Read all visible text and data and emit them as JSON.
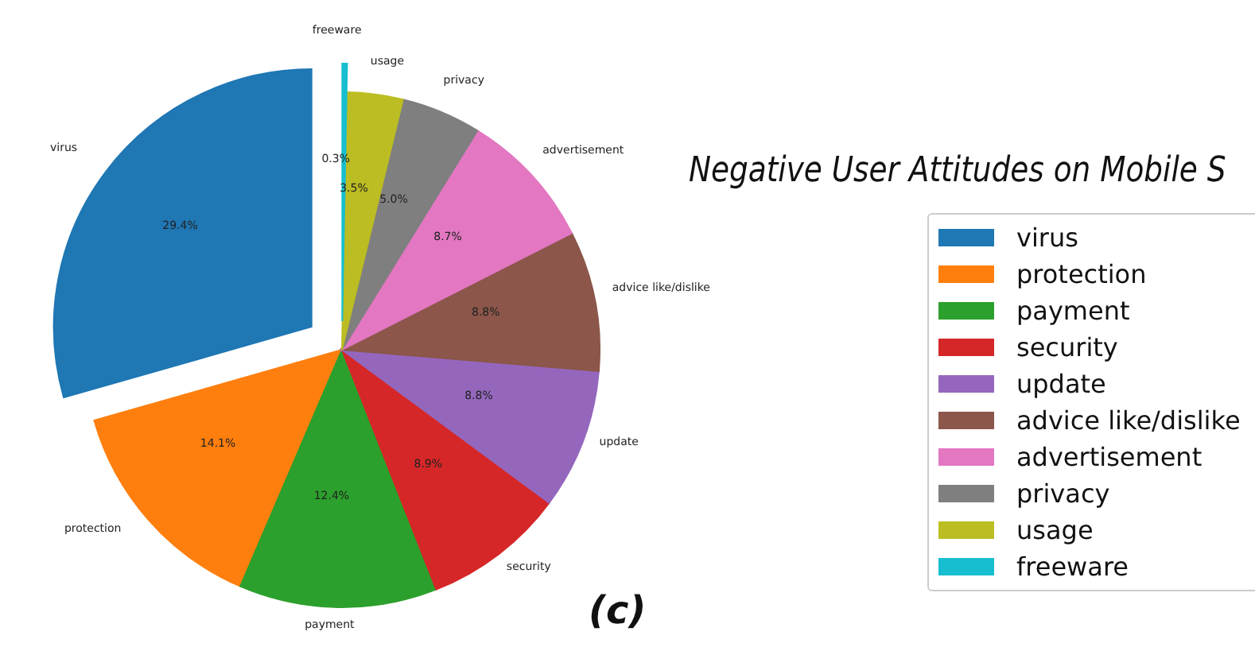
{
  "chart_data": {
    "type": "pie",
    "title": "Negative User Attitudes on Mobile S",
    "categories": [
      "virus",
      "protection",
      "payment",
      "security",
      "update",
      "advice like/dislike",
      "advertisement",
      "privacy",
      "usage",
      "freeware"
    ],
    "values": [
      29.4,
      14.1,
      12.4,
      8.9,
      8.8,
      8.8,
      8.7,
      5.0,
      3.5,
      0.3
    ],
    "colors": [
      "#1f77b4",
      "#ff7f0e",
      "#2ca02c",
      "#d62728",
      "#9467bd",
      "#8c564b",
      "#e377c2",
      "#7f7f7f",
      "#bcbd22",
      "#17becf"
    ],
    "value_labels": [
      "29.4%",
      "14.1%",
      "12.4%",
      "8.9%",
      "8.8%",
      "8.8%",
      "8.7%",
      "5.0%",
      "3.5%",
      "0.3%"
    ],
    "legend": "right",
    "annotations": [
      "(c)"
    ]
  }
}
